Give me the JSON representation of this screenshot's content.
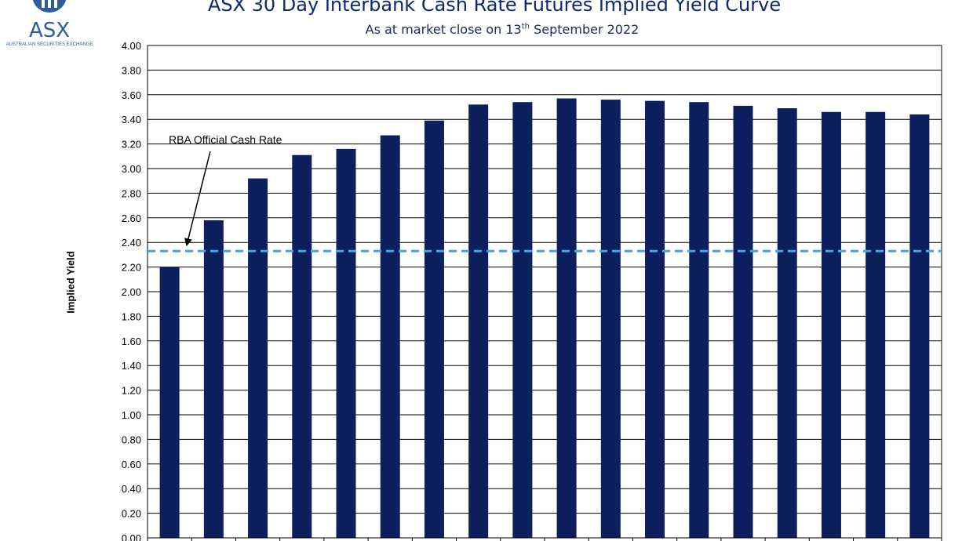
{
  "logo": {
    "text": "ASX",
    "subtext": "AUSTRALIAN SECURITIES EXCHANGE"
  },
  "chart_data": {
    "type": "bar",
    "title": "ASX 30 Day Interbank Cash Rate Futures Implied Yield Curve",
    "subtitle_prefix": "As at market close on 13",
    "subtitle_sup": "th",
    "subtitle_suffix": " September 2022",
    "ylabel": "Implied Yield",
    "ylim": [
      0,
      4.0
    ],
    "yticks": [
      "0.00",
      "0.20",
      "0.40",
      "0.60",
      "0.80",
      "1.00",
      "1.20",
      "1.40",
      "1.60",
      "1.80",
      "2.00",
      "2.20",
      "2.40",
      "2.60",
      "2.80",
      "3.00",
      "3.20",
      "3.40",
      "3.60",
      "3.80",
      "4.00"
    ],
    "grid": true,
    "bar_color": "#0d1f5c",
    "values": [
      2.2,
      2.58,
      2.92,
      3.11,
      3.16,
      3.27,
      3.39,
      3.52,
      3.54,
      3.57,
      3.56,
      3.55,
      3.54,
      3.51,
      3.49,
      3.46,
      3.46,
      3.44
    ],
    "reference_line": {
      "label": "RBA Official Cash Rate",
      "value": 2.33,
      "color": "#4aa3e0"
    }
  }
}
